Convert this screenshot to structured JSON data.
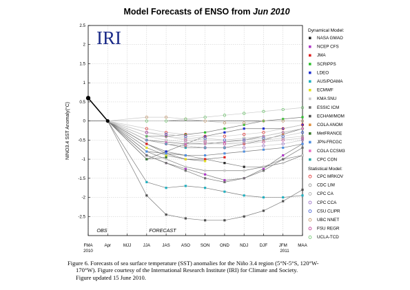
{
  "title": {
    "main": "Model Forecasts of ENSO from",
    "month": "Jun 2010"
  },
  "logo_text": "IRI",
  "axis": {
    "ylabel": "NINO3.4 SST Anomaly(°C)",
    "yticks": [
      "2.5",
      "2",
      "1.5",
      "1",
      "0.5",
      "0",
      "-0.5",
      "-1",
      "-1.5",
      "-2",
      "-2.5"
    ],
    "xticks": [
      "FMA",
      "Apr",
      "MJJ",
      "JJA",
      "JAS",
      "ASO",
      "SON",
      "OND",
      "NDJ",
      "DJF",
      "JFM",
      "MAA"
    ],
    "x_year_left": "2010",
    "x_year_right": "2011",
    "obs_label": "OBS",
    "forecast_label": "FORECAST"
  },
  "legend": {
    "dynamical_header": "Dynamical Model:",
    "statistical_header": "Statistical Model:"
  },
  "caption": {
    "line1": "Figure 6. Forecasts of sea surface temperature (SST) anomalies for the Niño 3.4 region (5°N-5°S, 120°W-",
    "line2": "170°W).  Figure courtesy of the International Research Institute (IRI) for Climate and Society.",
    "line3": "Figure updated 15 June 2010."
  },
  "chart_data": {
    "type": "line",
    "title": "Model Forecasts of ENSO from Jun 2010",
    "xlabel": "",
    "ylabel": "NINO3.4 SST Anomaly(°C)",
    "ylim": [
      -3,
      2.5
    ],
    "grid": true,
    "legend_position": "right",
    "categories": [
      "FMA",
      "Apr",
      "MJJ",
      "JJA",
      "JAS",
      "ASO",
      "SON",
      "OND",
      "NDJ",
      "DJF",
      "JFM",
      "MAA"
    ],
    "observed": {
      "x": [
        "FMA",
        "Apr"
      ],
      "values": [
        0.6,
        0.0
      ]
    },
    "series": [
      {
        "name": "NASA GMAO",
        "group": "dynamical",
        "marker": "filled",
        "color": "#2a2a2a",
        "values": [
          null,
          0.0,
          null,
          -0.6,
          -0.8,
          -0.9,
          -1.0,
          -1.1,
          -1.2,
          -1.2,
          -1.0,
          -0.9
        ]
      },
      {
        "name": "NCEP CFS",
        "group": "dynamical",
        "marker": "filled",
        "color": "#b038c8",
        "values": [
          null,
          0.0,
          null,
          -0.9,
          -1.1,
          -1.25,
          -1.4,
          -1.55,
          -1.5,
          -1.25,
          -0.9,
          -0.6
        ]
      },
      {
        "name": "JMA",
        "group": "dynamical",
        "marker": "filled",
        "color": "#e02020",
        "values": [
          null,
          0.0,
          null,
          -0.6,
          -0.85,
          -1.0,
          -1.0,
          -0.95,
          null,
          null,
          null,
          null
        ]
      },
      {
        "name": "SCRIPPS",
        "group": "dynamical",
        "marker": "filled",
        "color": "#30c030",
        "values": [
          null,
          0.0,
          null,
          -0.4,
          -0.4,
          -0.35,
          -0.3,
          -0.2,
          -0.1,
          0.0,
          0.05,
          0.1
        ]
      },
      {
        "name": "LDEO",
        "group": "dynamical",
        "marker": "filled",
        "color": "#2030d0",
        "values": [
          null,
          0.0,
          null,
          -1.0,
          -0.8,
          -0.6,
          -0.4,
          -0.3,
          -0.2,
          -0.2,
          -0.2,
          -0.1
        ]
      },
      {
        "name": "AUS/POAMA",
        "group": "dynamical",
        "marker": "filled",
        "color": "#20b0c0",
        "values": [
          null,
          0.0,
          null,
          -1.6,
          -1.75,
          -1.7,
          -1.75,
          -1.85,
          -1.95,
          -2.0,
          -2.0,
          -1.95
        ]
      },
      {
        "name": "ECMWF",
        "group": "dynamical",
        "marker": "filled",
        "color": "#e0e020",
        "values": [
          null,
          0.0,
          null,
          -0.7,
          -0.9,
          -1.0,
          -1.05,
          null,
          null,
          null,
          null,
          null
        ]
      },
      {
        "name": "KMA SNU",
        "group": "dynamical",
        "marker": "filled",
        "color": "#c8c8c8",
        "values": [
          null,
          0.0,
          null,
          -0.8,
          -1.0,
          -1.2,
          -1.3,
          -1.3,
          -1.3,
          -1.2,
          -1.1,
          -0.9
        ]
      },
      {
        "name": "ESSIC ICM",
        "group": "dynamical",
        "marker": "filled",
        "color": "#707070",
        "values": [
          null,
          0.0,
          null,
          -0.9,
          -1.1,
          -1.3,
          -1.5,
          -1.6,
          -1.5,
          -1.3,
          -1.0,
          -0.7
        ]
      },
      {
        "name": "ECHAM/MOM",
        "group": "dynamical",
        "marker": "filled",
        "color": "#505050",
        "values": [
          null,
          0.0,
          null,
          -1.95,
          -2.45,
          -2.55,
          -2.6,
          -2.6,
          -2.5,
          -2.35,
          -2.1,
          -1.8
        ]
      },
      {
        "name": "COLA ANOM",
        "group": "dynamical",
        "marker": "filled",
        "color": "#e09040",
        "values": [
          null,
          0.0,
          null,
          -0.5,
          -0.6,
          -0.65,
          -0.7,
          -0.7,
          -0.6,
          -0.5,
          -0.35,
          -0.2
        ]
      },
      {
        "name": "MetFRANCE",
        "group": "dynamical",
        "marker": "filled",
        "color": "#3a7a2a",
        "values": [
          null,
          0.0,
          null,
          -1.0,
          -0.95,
          null,
          null,
          null,
          null,
          null,
          null,
          null
        ]
      },
      {
        "name": "JPN-FRCGC",
        "group": "dynamical",
        "marker": "filled",
        "color": "#5090e0",
        "values": [
          null,
          0.0,
          null,
          -0.8,
          -0.85,
          -0.9,
          -0.9,
          -0.85,
          -0.8,
          -0.75,
          -0.7,
          -0.6
        ]
      },
      {
        "name": "COLA CCSM3",
        "group": "dynamical",
        "marker": "filled",
        "color": "#e870c0",
        "values": [
          null,
          0.0,
          null,
          -0.5,
          -0.55,
          -0.6,
          -0.6,
          -0.55,
          -0.5,
          -0.4,
          -0.3,
          -0.2
        ]
      },
      {
        "name": "CPC CON",
        "group": "dynamical",
        "marker": "filled",
        "color": "#30a8a8",
        "values": [
          null,
          0.0,
          null,
          -0.5,
          -0.6,
          -0.7,
          -0.7,
          -0.7,
          null,
          null,
          null,
          null
        ]
      },
      {
        "name": "CPC MRKOV",
        "group": "statistical",
        "marker": "open",
        "color": "#e02020",
        "values": [
          null,
          0.0,
          null,
          -0.2,
          -0.3,
          -0.35,
          -0.4,
          -0.4,
          -0.35,
          -0.3,
          -0.2,
          -0.1
        ]
      },
      {
        "name": "CDC LIM",
        "group": "statistical",
        "marker": "open",
        "color": "#909090",
        "values": [
          null,
          0.0,
          null,
          -0.3,
          -0.4,
          -0.45,
          -0.5,
          -0.5,
          -0.45,
          -0.4,
          -0.3,
          -0.2
        ]
      },
      {
        "name": "CPC CA",
        "group": "statistical",
        "marker": "open",
        "color": "#a0a0a0",
        "values": [
          null,
          0.0,
          null,
          -0.4,
          -0.5,
          -0.55,
          -0.6,
          -0.6,
          -0.55,
          -0.5,
          -0.45,
          -0.4
        ]
      },
      {
        "name": "CPC CCA",
        "group": "statistical",
        "marker": "open",
        "color": "#9060c0",
        "values": [
          null,
          0.0,
          null,
          -0.5,
          -0.6,
          -0.65,
          -0.7,
          -0.7,
          -0.7,
          -0.65,
          -0.6,
          -0.5
        ]
      },
      {
        "name": "CSU CLIPR",
        "group": "statistical",
        "marker": "open",
        "color": "#3050d0",
        "values": [
          null,
          0.0,
          null,
          -0.3,
          -0.35,
          -0.4,
          -0.45,
          -0.5,
          -0.5,
          -0.45,
          -0.4,
          -0.3
        ]
      },
      {
        "name": "UBC NNET",
        "group": "statistical",
        "marker": "open",
        "color": "#c09060",
        "values": [
          null,
          0.0,
          null,
          0.1,
          0.1,
          0.05,
          0.0,
          -0.05,
          -0.05,
          0.0,
          0.0,
          0.0
        ]
      },
      {
        "name": "FSU REGR",
        "group": "statistical",
        "marker": "open",
        "color": "#c03090",
        "values": [
          null,
          0.0,
          null,
          -0.3,
          -0.4,
          -0.5,
          -0.55,
          -0.6,
          -0.6,
          -0.55,
          -0.5,
          -0.45
        ]
      },
      {
        "name": "UCLA-TCD",
        "group": "statistical",
        "marker": "open",
        "color": "#60c060",
        "values": [
          null,
          0.0,
          null,
          0.0,
          0.0,
          0.05,
          0.1,
          0.15,
          0.2,
          0.25,
          0.3,
          0.35
        ]
      }
    ]
  }
}
